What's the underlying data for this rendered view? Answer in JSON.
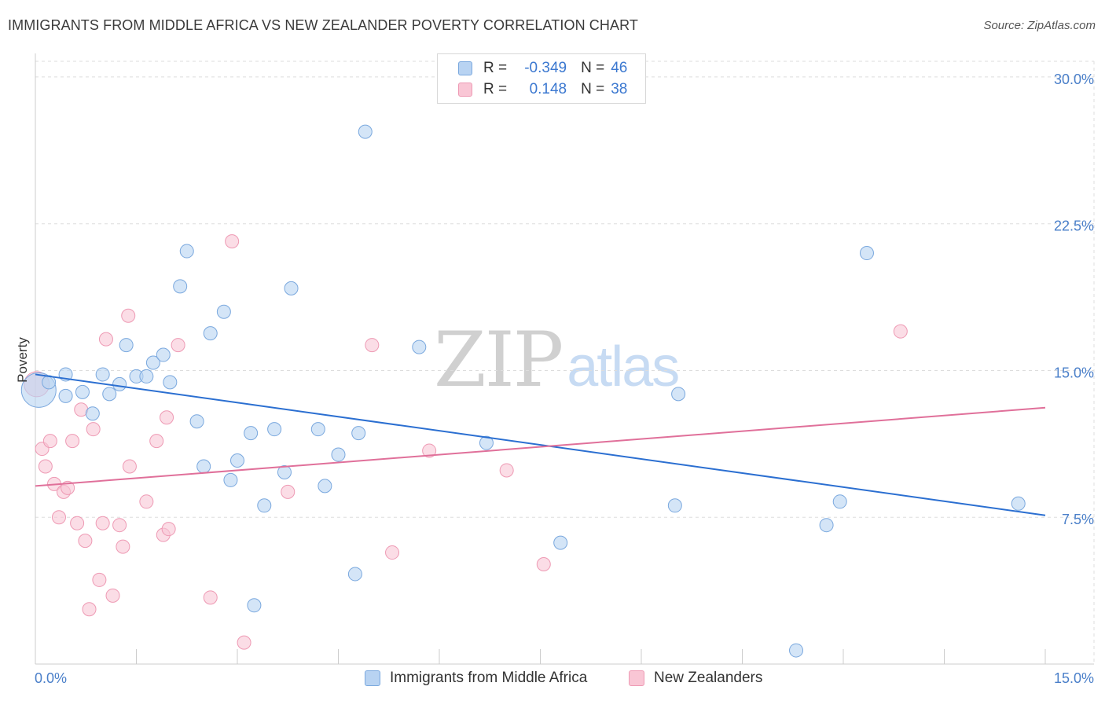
{
  "title": "IMMIGRANTS FROM MIDDLE AFRICA VS NEW ZEALANDER POVERTY CORRELATION CHART",
  "source": "Source: ZipAtlas.com",
  "watermark": {
    "zip": "ZIP",
    "atlas": "atlas"
  },
  "legend": {
    "series1": {
      "r_label": "R =",
      "r_value": "-0.349",
      "n_label": "N =",
      "n_value": "46"
    },
    "series2": {
      "r_label": "R =",
      "r_value": "0.148",
      "n_label": "N =",
      "n_value": "38"
    }
  },
  "colors": {
    "blue_fill": "#b8d3f2",
    "blue_stroke": "#7aa8de",
    "blue_line": "#2b6fd1",
    "pink_fill": "#f9c6d5",
    "pink_stroke": "#ee9ab4",
    "pink_line": "#e0709a",
    "tick_text": "#4a7fc9",
    "grid": "#dddddd"
  },
  "chart_data": {
    "type": "scatter",
    "title": "IMMIGRANTS FROM MIDDLE AFRICA VS NEW ZEALANDER POVERTY CORRELATION CHART",
    "xlabel": "",
    "ylabel": "Poverty",
    "xlim": [
      0,
      15
    ],
    "ylim": [
      0,
      30.8
    ],
    "x_tick_labels": [
      "0.0%",
      "15.0%"
    ],
    "y_ticks": [
      7.5,
      15.0,
      22.5,
      30.0
    ],
    "y_tick_labels": [
      "7.5%",
      "15.0%",
      "22.5%",
      "30.0%"
    ],
    "grid": true,
    "legend_position": "bottom",
    "series": [
      {
        "name": "Immigrants from Middle Africa",
        "color": "#b8d3f2",
        "trend": {
          "x": [
            0,
            15
          ],
          "y": [
            14.8,
            7.6
          ]
        },
        "points": [
          [
            0.05,
            14.0,
            22
          ],
          [
            0.2,
            14.4,
            10
          ],
          [
            0.45,
            14.8,
            10
          ],
          [
            0.45,
            13.7,
            10
          ],
          [
            0.7,
            13.9,
            10
          ],
          [
            0.85,
            12.8,
            10
          ],
          [
            1.0,
            14.8,
            10
          ],
          [
            1.1,
            13.8,
            10
          ],
          [
            1.25,
            14.3,
            10
          ],
          [
            1.35,
            16.3,
            10
          ],
          [
            1.5,
            14.7,
            10
          ],
          [
            1.65,
            14.7,
            10
          ],
          [
            1.75,
            15.4,
            10
          ],
          [
            1.9,
            15.8,
            10
          ],
          [
            2.0,
            14.4,
            10
          ],
          [
            2.15,
            19.3,
            10
          ],
          [
            2.25,
            21.1,
            10
          ],
          [
            2.4,
            12.4,
            10
          ],
          [
            2.5,
            10.1,
            10
          ],
          [
            2.6,
            16.9,
            10
          ],
          [
            2.8,
            18.0,
            10
          ],
          [
            2.9,
            9.4,
            10
          ],
          [
            3.0,
            10.4,
            10
          ],
          [
            3.2,
            11.8,
            10
          ],
          [
            3.25,
            3.0,
            10
          ],
          [
            3.4,
            8.1,
            10
          ],
          [
            3.55,
            12.0,
            10
          ],
          [
            3.7,
            9.8,
            10
          ],
          [
            3.8,
            19.2,
            10
          ],
          [
            4.2,
            12.0,
            10
          ],
          [
            4.3,
            9.1,
            10
          ],
          [
            4.5,
            10.7,
            10
          ],
          [
            4.75,
            4.6,
            10
          ],
          [
            4.8,
            11.8,
            10
          ],
          [
            4.9,
            27.2,
            10
          ],
          [
            5.7,
            16.2,
            10
          ],
          [
            6.7,
            11.3,
            10
          ],
          [
            7.8,
            6.2,
            10
          ],
          [
            9.5,
            8.1,
            10
          ],
          [
            9.55,
            13.8,
            10
          ],
          [
            11.3,
            0.7,
            10
          ],
          [
            11.75,
            7.1,
            10
          ],
          [
            11.95,
            8.3,
            10
          ],
          [
            12.35,
            21.0,
            10
          ],
          [
            14.6,
            8.2,
            10
          ],
          [
            14.2,
            8.2,
            0
          ]
        ]
      },
      {
        "name": "New Zealanders",
        "color": "#f9c6d5",
        "trend": {
          "x": [
            0,
            15
          ],
          "y": [
            9.1,
            13.1
          ]
        },
        "points": [
          [
            0.02,
            14.3,
            16
          ],
          [
            0.1,
            11.0,
            10
          ],
          [
            0.15,
            10.1,
            10
          ],
          [
            0.22,
            11.4,
            10
          ],
          [
            0.28,
            9.2,
            10
          ],
          [
            0.35,
            7.5,
            10
          ],
          [
            0.42,
            8.8,
            10
          ],
          [
            0.48,
            9.0,
            10
          ],
          [
            0.55,
            11.4,
            10
          ],
          [
            0.62,
            7.2,
            10
          ],
          [
            0.68,
            13.0,
            10
          ],
          [
            0.74,
            6.3,
            10
          ],
          [
            0.8,
            2.8,
            10
          ],
          [
            0.86,
            12.0,
            10
          ],
          [
            0.95,
            4.3,
            10
          ],
          [
            1.0,
            7.2,
            10
          ],
          [
            1.05,
            16.6,
            10
          ],
          [
            1.15,
            3.5,
            10
          ],
          [
            1.25,
            7.1,
            10
          ],
          [
            1.3,
            6.0,
            10
          ],
          [
            1.4,
            10.1,
            10
          ],
          [
            1.38,
            17.8,
            10
          ],
          [
            1.65,
            8.3,
            10
          ],
          [
            1.8,
            11.4,
            10
          ],
          [
            1.9,
            6.6,
            10
          ],
          [
            1.95,
            12.6,
            10
          ],
          [
            1.98,
            6.9,
            10
          ],
          [
            2.12,
            16.3,
            10
          ],
          [
            2.6,
            3.4,
            10
          ],
          [
            2.92,
            21.6,
            10
          ],
          [
            3.1,
            1.1,
            10
          ],
          [
            3.75,
            8.8,
            10
          ],
          [
            5.0,
            16.3,
            10
          ],
          [
            5.3,
            5.7,
            10
          ],
          [
            5.85,
            10.9,
            10
          ],
          [
            7.0,
            9.9,
            10
          ],
          [
            7.55,
            5.1,
            10
          ],
          [
            12.85,
            17.0,
            10
          ]
        ]
      }
    ]
  }
}
